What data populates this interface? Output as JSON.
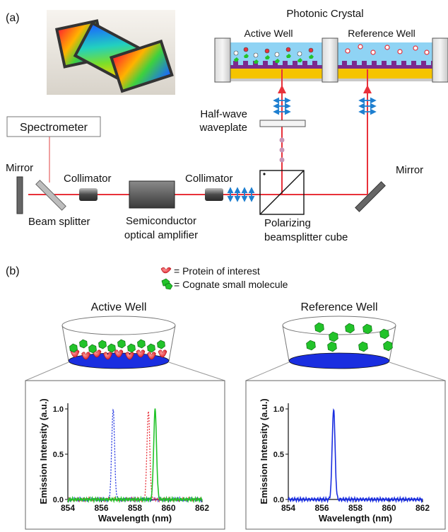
{
  "panel_a": {
    "label": "(a)",
    "crystal_title": "Photonic Crystal",
    "active_well": "Active Well",
    "reference_well": "Reference Well",
    "half_wave_line1": "Half-wave",
    "half_wave_line2": "waveplate",
    "spectrometer": "Spectrometer",
    "mirror_left": "Mirror",
    "mirror_right": "Mirror",
    "beam_splitter": "Beam splitter",
    "collimator_left": "Collimator",
    "collimator_right": "Collimator",
    "soa_line1": "Semiconductor",
    "soa_line2": "optical amplifier",
    "pbs_line1": "Polarizing",
    "pbs_line2": "beamsplitter cube"
  },
  "panel_b": {
    "label": "(b)",
    "legend": [
      {
        "text": "= Protein of interest",
        "icon": "protein-icon",
        "color": "#e8313a"
      },
      {
        "text": "= Cognate small molecule",
        "icon": "molecule-icon",
        "color": "#22c32a"
      }
    ],
    "active_well": "Active Well",
    "reference_well": "Reference Well"
  },
  "colors": {
    "laser": "#e8313a",
    "crystal_blue": "#8fd3f4",
    "crystal_yellow": "#f5c400",
    "grating": "#7b2a8e",
    "well_fill": "#1a2ee0",
    "protein": "#e8313a",
    "molecule": "#22c32a",
    "polarization": "#1e7fd0"
  },
  "chart_data": [
    {
      "type": "line",
      "xlabel": "Wavelength (nm)",
      "ylabel": "Emission Intensity (a.u.)",
      "xlim": [
        854,
        862
      ],
      "ylim": [
        0.0,
        1.0
      ],
      "xticks": [
        854,
        856,
        858,
        860,
        862
      ],
      "yticks": [
        0.0,
        0.5,
        1.0
      ],
      "series": [
        {
          "color": "#1a2ee0",
          "style": "dotted",
          "peak_x": 856.7,
          "peak_y": 1.0
        },
        {
          "color": "#e8313a",
          "style": "dotted",
          "peak_x": 858.8,
          "peak_y": 0.97
        },
        {
          "color": "#22c32a",
          "style": "solid",
          "peak_x": 859.2,
          "peak_y": 0.99
        }
      ]
    },
    {
      "type": "line",
      "xlabel": "Wavelength (nm)",
      "ylabel": "Emission Intensity (a.u.)",
      "xlim": [
        854,
        862
      ],
      "ylim": [
        0.0,
        1.0
      ],
      "xticks": [
        854,
        856,
        858,
        860,
        862
      ],
      "yticks": [
        0.0,
        0.5,
        1.0
      ],
      "series": [
        {
          "color": "#1a2ee0",
          "style": "solid",
          "peak_x": 856.7,
          "peak_y": 1.0
        }
      ]
    }
  ]
}
